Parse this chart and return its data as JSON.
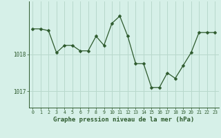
{
  "x": [
    0,
    1,
    2,
    3,
    4,
    5,
    6,
    7,
    8,
    9,
    10,
    11,
    12,
    13,
    14,
    15,
    16,
    17,
    18,
    19,
    20,
    21,
    22,
    23
  ],
  "y": [
    1018.7,
    1018.7,
    1018.65,
    1018.05,
    1018.25,
    1018.25,
    1018.1,
    1018.1,
    1018.5,
    1018.25,
    1018.85,
    1019.05,
    1018.5,
    1017.75,
    1017.75,
    1017.1,
    1017.1,
    1017.5,
    1017.35,
    1017.7,
    1018.05,
    1018.6,
    1018.6,
    1018.6
  ],
  "line_color": "#2d5a2d",
  "marker": "D",
  "marker_size": 2.5,
  "background_color": "#d6f0e8",
  "grid_color": "#b8d8cc",
  "xlabel": "Graphe pression niveau de la mer (hPa)",
  "xlabel_fontsize": 6.5,
  "xtick_labels": [
    "0",
    "1",
    "2",
    "3",
    "4",
    "5",
    "6",
    "7",
    "8",
    "9",
    "10",
    "11",
    "12",
    "13",
    "14",
    "15",
    "16",
    "17",
    "18",
    "19",
    "20",
    "21",
    "22",
    "23"
  ],
  "ytick_positions": [
    1017,
    1018
  ],
  "ylim": [
    1016.55,
    1019.45
  ],
  "xlim": [
    -0.5,
    23.5
  ]
}
